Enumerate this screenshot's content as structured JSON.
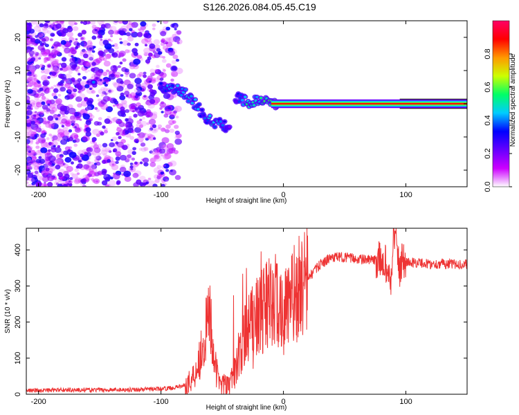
{
  "title": "S126.2026.084.05.45.C19",
  "chart_data": [
    {
      "type": "heatmap",
      "title": "S126.2026.084.05.45.C19",
      "xlabel": "Height of straight line (km)",
      "ylabel": "Frequency (Hz)",
      "xlim": [
        -210,
        150
      ],
      "ylim": [
        -25,
        25
      ],
      "xticks": [
        -200,
        -100,
        0,
        100
      ],
      "xtick_labels": [
        "-200",
        "-100",
        "0",
        "100"
      ],
      "yticks": [
        -20,
        -10,
        0,
        10,
        20
      ],
      "ytick_labels": [
        "-20",
        "-10",
        "0",
        "10",
        "20"
      ],
      "colorbar": {
        "label": "Normalized spectral amplitude",
        "range": [
          0.0,
          1.0
        ],
        "ticks": [
          0.0,
          0.2,
          0.4,
          0.6,
          0.8
        ],
        "tick_labels": [
          "0.0",
          "0.2",
          "0.4",
          "0.6",
          "0.8"
        ],
        "colormap": [
          "#ffffff",
          "#cc00ff",
          "#6600ff",
          "#0000ff",
          "#00ccff",
          "#00ff66",
          "#ccff00",
          "#ff9900",
          "#ff0000",
          "#ff0066"
        ]
      },
      "signal_track": [
        {
          "x": -155,
          "freq": 6.5,
          "amp": 0.35
        },
        {
          "x": -125,
          "freq": 5.5,
          "amp": 0.25
        },
        {
          "x": -100,
          "freq": 5.0,
          "amp": 0.3
        },
        {
          "x": -90,
          "freq": 4.5,
          "amp": 0.4
        },
        {
          "x": -80,
          "freq": 3.0,
          "amp": 0.45
        },
        {
          "x": -72,
          "freq": 0.0,
          "amp": 0.4
        },
        {
          "x": -65,
          "freq": -3.5,
          "amp": 0.35
        },
        {
          "x": -58,
          "freq": -5.5,
          "amp": 0.45
        },
        {
          "x": -50,
          "freq": -6.0,
          "amp": 0.35
        },
        {
          "x": -45,
          "freq": -8.0,
          "amp": 0.25
        },
        {
          "x": -38,
          "freq": 2.0,
          "amp": 0.3
        },
        {
          "x": -30,
          "freq": 0.5,
          "amp": 0.5
        },
        {
          "x": -20,
          "freq": 1.0,
          "amp": 0.45
        },
        {
          "x": -10,
          "freq": 0.2,
          "amp": 0.6
        },
        {
          "x": 0,
          "freq": 0.0,
          "amp": 0.75
        },
        {
          "x": 20,
          "freq": 0.0,
          "amp": 0.6
        },
        {
          "x": 40,
          "freq": 0.0,
          "amp": 0.7
        },
        {
          "x": 60,
          "freq": 0.0,
          "amp": 0.65
        },
        {
          "x": 80,
          "freq": 0.0,
          "amp": 0.6
        },
        {
          "x": 90,
          "freq": 0.0,
          "amp": 0.8
        },
        {
          "x": 110,
          "freq": 0.0,
          "amp": 0.9
        },
        {
          "x": 130,
          "freq": 0.0,
          "amp": 0.9
        },
        {
          "x": 150,
          "freq": 0.0,
          "amp": 0.9
        }
      ]
    },
    {
      "type": "line",
      "xlabel": "Height of straight line (km)",
      "ylabel": "SNR (10 * v/v)",
      "xlim": [
        -210,
        150
      ],
      "ylim": [
        0,
        460
      ],
      "xticks": [
        -200,
        -100,
        0,
        100
      ],
      "xtick_labels": [
        "-200",
        "-100",
        "0",
        "100"
      ],
      "yticks": [
        0,
        100,
        200,
        300,
        400
      ],
      "ytick_labels": [
        "0",
        "100",
        "200",
        "300",
        "400"
      ],
      "series": [
        {
          "name": "SNR",
          "color": "#ee3333",
          "x": [
            -210,
            -180,
            -150,
            -120,
            -100,
            -90,
            -80,
            -75,
            -70,
            -65,
            -62,
            -60,
            -58,
            -55,
            -50,
            -45,
            -40,
            -35,
            -30,
            -25,
            -20,
            -15,
            -10,
            -5,
            0,
            10,
            20,
            30,
            40,
            50,
            60,
            70,
            80,
            85,
            88,
            90,
            92,
            95,
            98,
            100,
            110,
            120,
            130,
            140,
            150
          ],
          "y": [
            10,
            12,
            12,
            13,
            15,
            18,
            25,
            40,
            80,
            150,
            190,
            230,
            150,
            60,
            30,
            20,
            60,
            130,
            170,
            200,
            230,
            240,
            250,
            260,
            220,
            280,
            320,
            360,
            380,
            380,
            375,
            372,
            370,
            360,
            300,
            460,
            420,
            340,
            380,
            365,
            365,
            360,
            362,
            360,
            360
          ]
        }
      ]
    }
  ]
}
